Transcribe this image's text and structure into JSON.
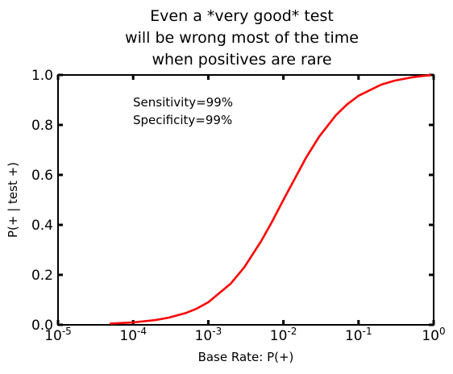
{
  "chart_data": {
    "type": "line",
    "title_lines": [
      "Even a *very good* test",
      "will be wrong most of the time",
      "when positives are rare"
    ],
    "xlabel": "Base Rate: P(+)",
    "ylabel": "P(+ | test +)",
    "xscale": "log",
    "xlim": [
      1e-05,
      1
    ],
    "ylim": [
      0,
      1
    ],
    "x_ticks": [
      {
        "base": "10",
        "exp": "-5"
      },
      {
        "base": "10",
        "exp": "-4"
      },
      {
        "base": "10",
        "exp": "-3"
      },
      {
        "base": "10",
        "exp": "-2"
      },
      {
        "base": "10",
        "exp": "-1"
      },
      {
        "base": "10",
        "exp": "0"
      }
    ],
    "y_ticks": [
      "0.0",
      "0.2",
      "0.4",
      "0.6",
      "0.8",
      "1.0"
    ],
    "annotations": [
      "Sensitivity=99%",
      "Specificity=99%"
    ],
    "grid": false,
    "series": [
      {
        "color": "#ff0000",
        "x": [
          5e-05,
          0.0001,
          0.0002,
          0.0003,
          0.0005,
          0.0007,
          0.001,
          0.002,
          0.003,
          0.005,
          0.007,
          0.01,
          0.02,
          0.03,
          0.05,
          0.07,
          0.1,
          0.2,
          0.3,
          0.5,
          0.7,
          0.9
        ],
        "y": [
          0.005,
          0.0098,
          0.0194,
          0.0289,
          0.0472,
          0.0649,
          0.0902,
          0.1657,
          0.2297,
          0.3322,
          0.4109,
          0.5,
          0.6689,
          0.7538,
          0.839,
          0.8817,
          0.9167,
          0.9612,
          0.977,
          0.99,
          0.9957,
          0.9989
        ]
      }
    ]
  }
}
